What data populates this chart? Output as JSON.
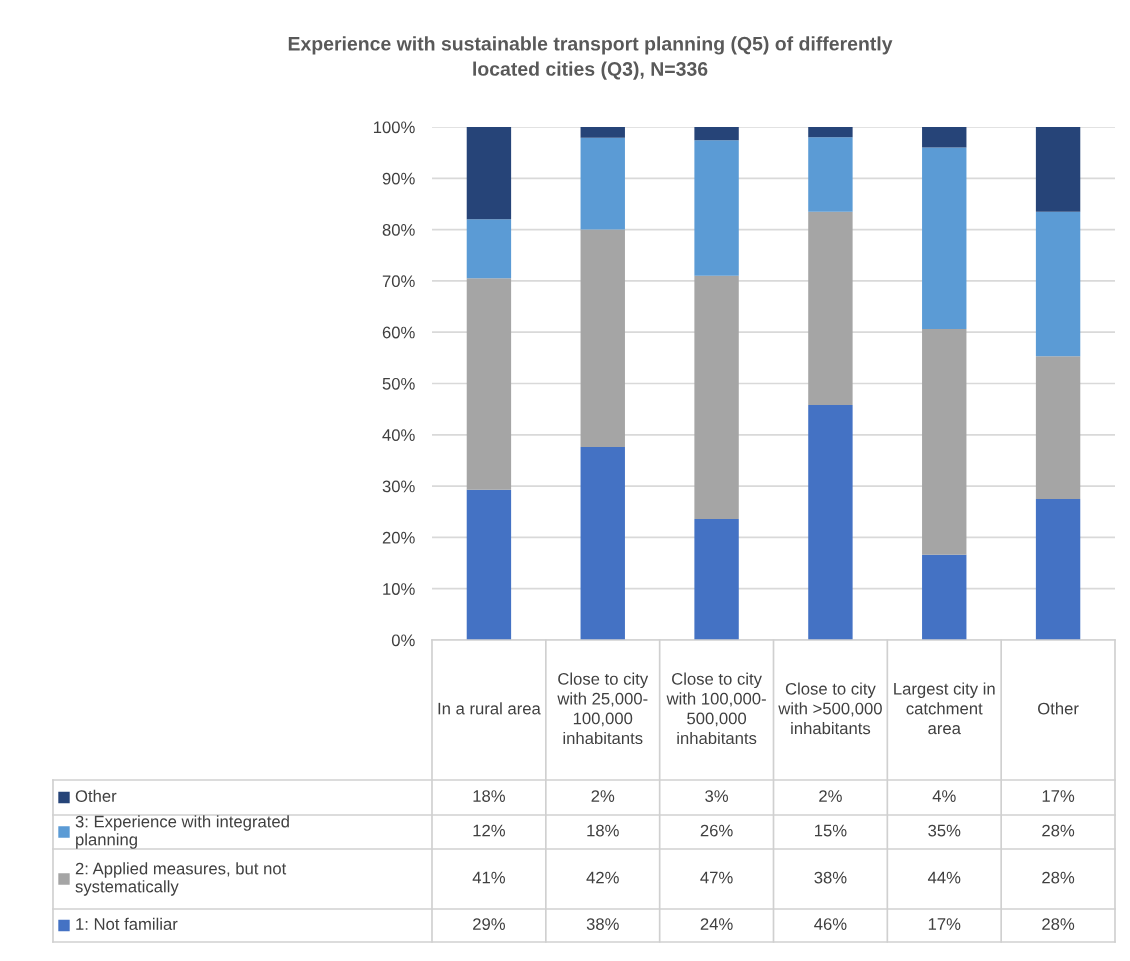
{
  "chart_data": {
    "type": "bar",
    "stacked": true,
    "title": "Experience with sustainable transport planning (Q5) of differently located cities (Q3), N=336",
    "categories": [
      "In a rural area",
      "Close to city with 25,000-100,000 inhabitants",
      "Close to city with 100,000-500,000 inhabitants",
      "Close to city with >500,000 inhabitants",
      "Largest city in catchment area",
      "Other"
    ],
    "ylim": [
      0,
      100
    ],
    "yticks": [
      {
        "value": 0,
        "label": "0%"
      },
      {
        "value": 10,
        "label": "10%"
      },
      {
        "value": 20,
        "label": "20%"
      },
      {
        "value": 30,
        "label": "30%"
      },
      {
        "value": 40,
        "label": "40%"
      },
      {
        "value": 50,
        "label": "50%"
      },
      {
        "value": 60,
        "label": "60%"
      },
      {
        "value": 70,
        "label": "70%"
      },
      {
        "value": 80,
        "label": "80%"
      },
      {
        "value": 90,
        "label": "90%"
      },
      {
        "value": 100,
        "label": "100%"
      }
    ],
    "grid": "y",
    "legend": "bottom left",
    "series": [
      {
        "name": "1: Not familiar",
        "color": "#4472c4",
        "values": [
          29.3,
          37.6,
          23.6,
          45.8,
          16.6,
          27.5
        ],
        "value_labels": [
          "29%",
          "38%",
          "24%",
          "46%",
          "17%",
          "28%"
        ]
      },
      {
        "name": "2: Applied measures, but not systematically",
        "color": "#a5a5a5",
        "values": [
          41.2,
          42.4,
          47.4,
          37.7,
          44.0,
          27.8
        ],
        "value_labels": [
          "41%",
          "42%",
          "47%",
          "38%",
          "44%",
          "28%"
        ]
      },
      {
        "name": "3: Experience with integrated planning",
        "color": "#5b9bd5",
        "values": [
          11.5,
          17.9,
          26.4,
          14.5,
          35.4,
          28.2
        ],
        "value_labels": [
          "12%",
          "18%",
          "26%",
          "15%",
          "35%",
          "28%"
        ]
      },
      {
        "name": "Other",
        "color": "#264478",
        "values": [
          18.0,
          2.1,
          2.6,
          2.0,
          4.0,
          16.5
        ],
        "value_labels": [
          "18%",
          "2%",
          "3%",
          "2%",
          "4%",
          "17%"
        ]
      }
    ]
  }
}
